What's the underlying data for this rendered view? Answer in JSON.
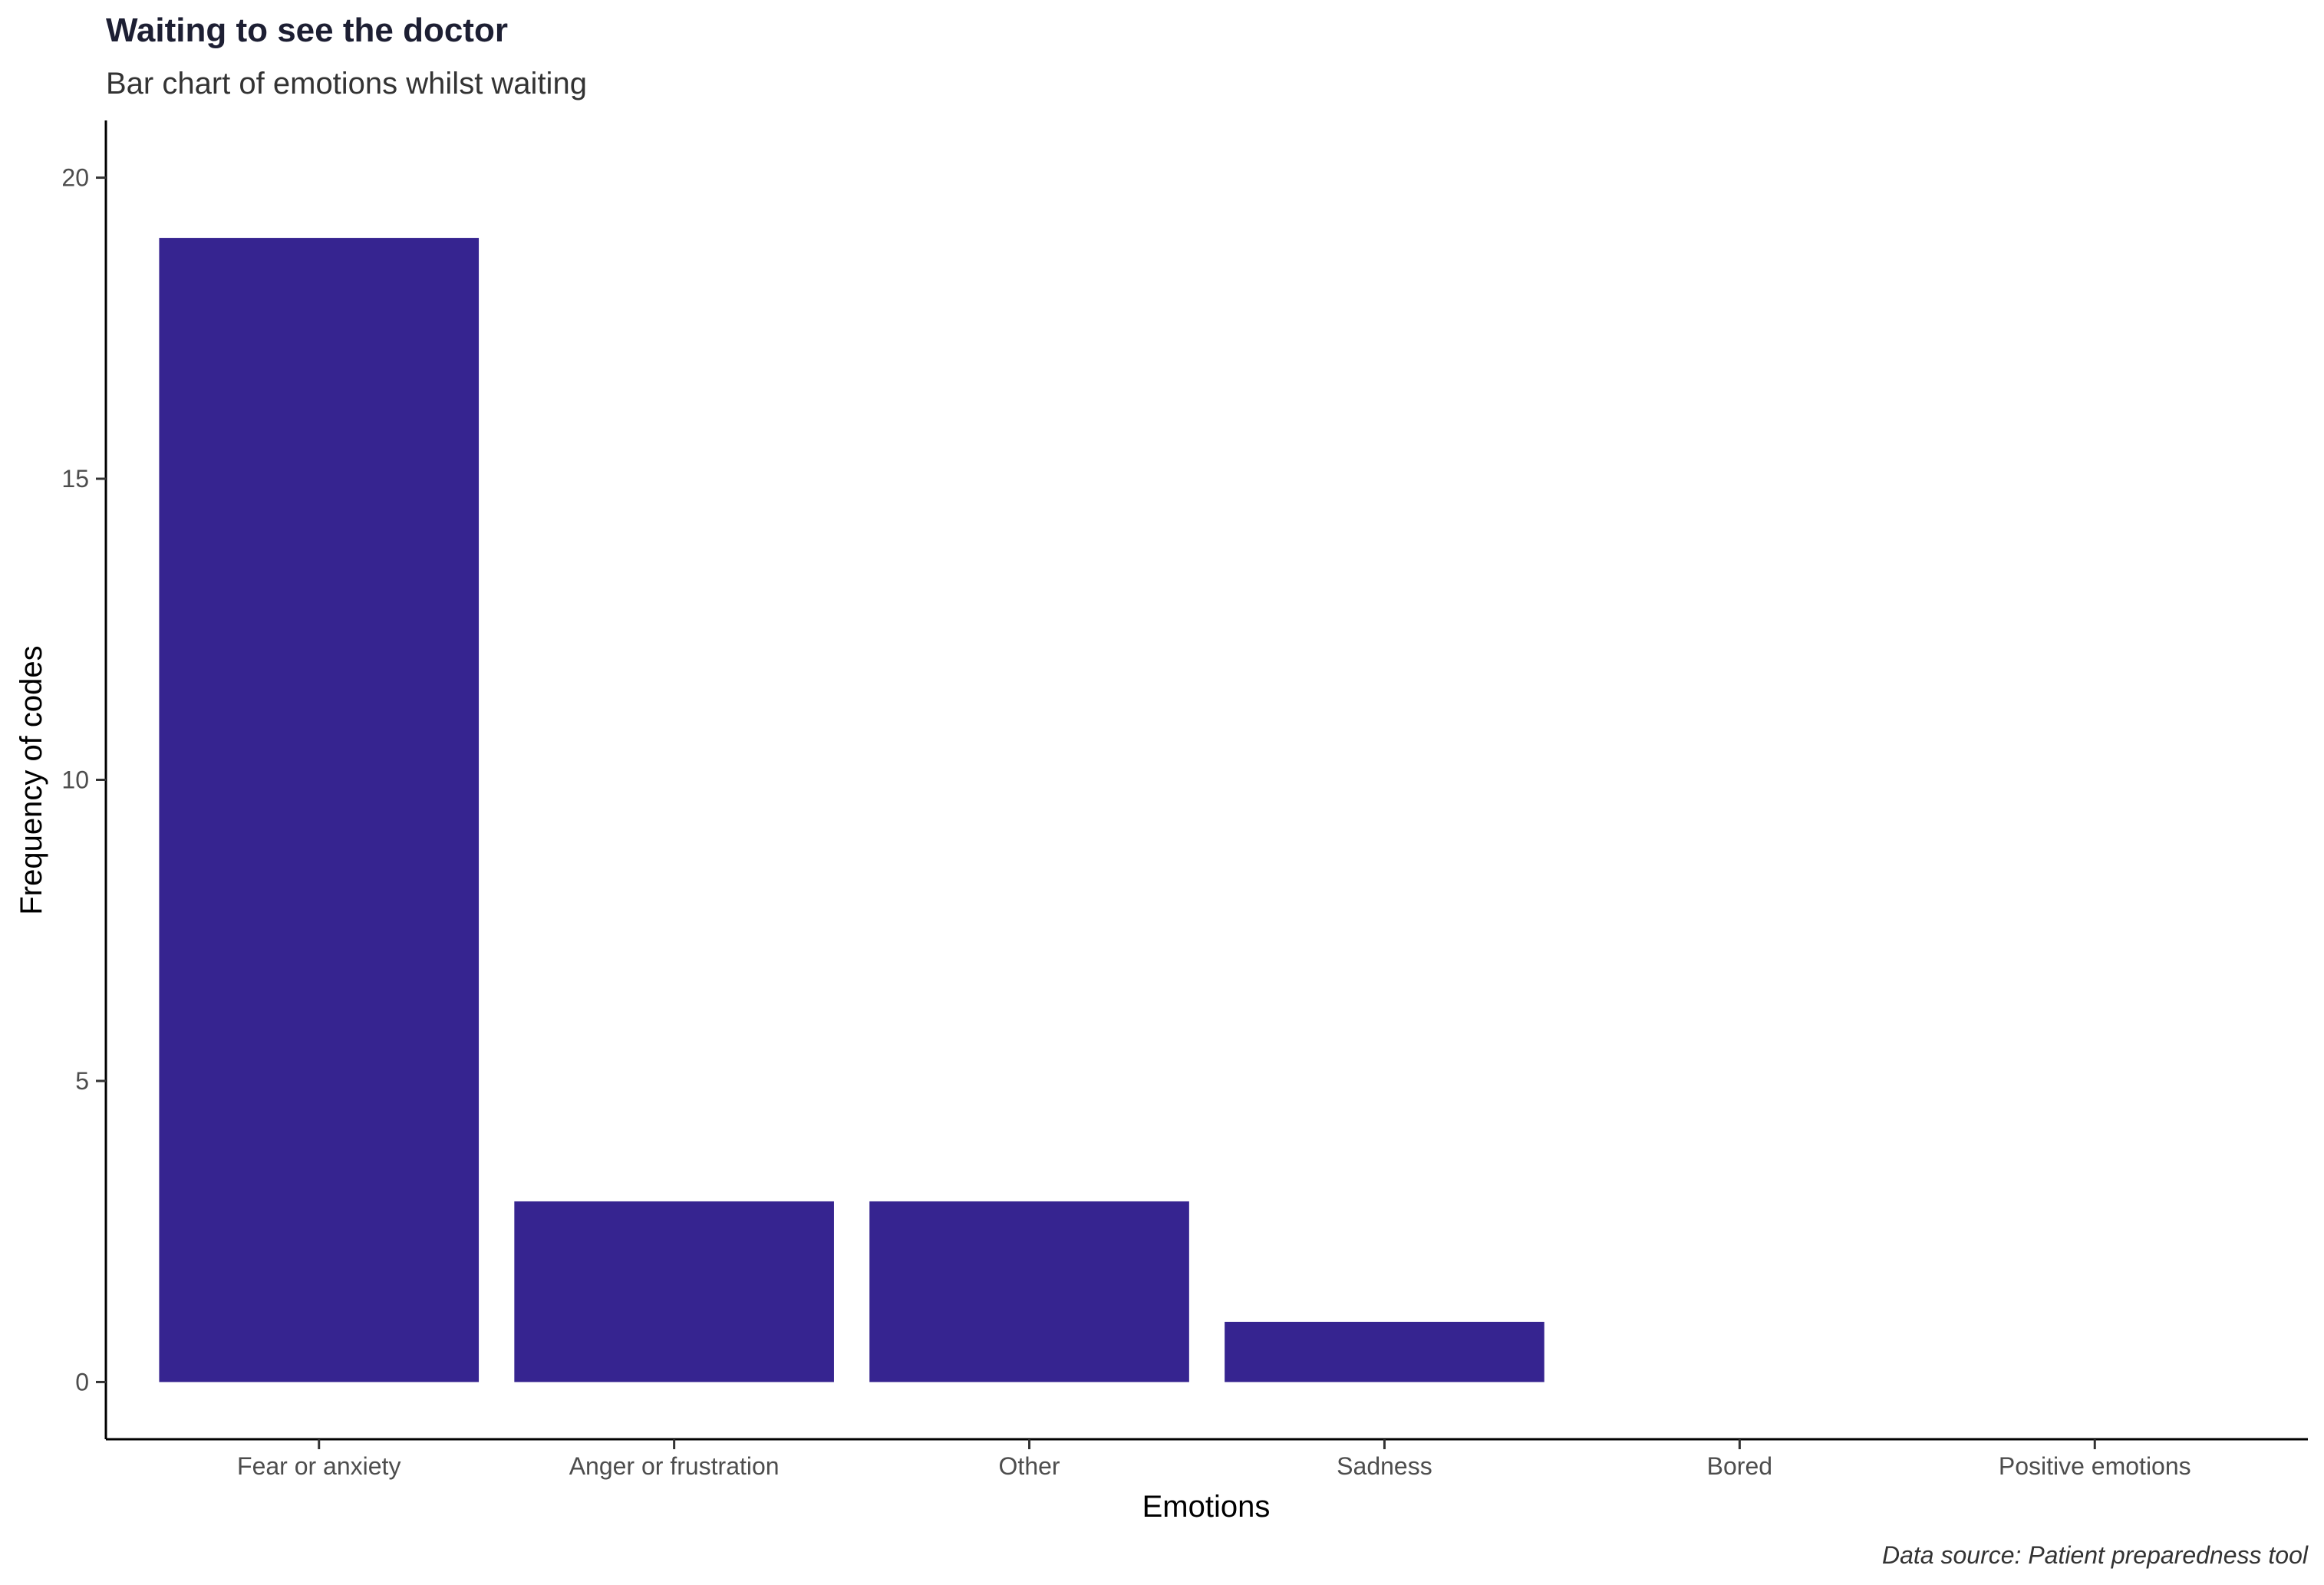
{
  "chart_data": {
    "type": "bar",
    "title": "Waiting to see the doctor",
    "subtitle": "Bar chart of emotions whilst waiting",
    "xlabel": "Emotions",
    "ylabel": "Frequency of codes",
    "caption": "Data source: Patient preparedness tool",
    "categories": [
      "Fear or anxiety",
      "Anger or frustration",
      "Other",
      "Sadness",
      "Bored",
      "Positive emotions"
    ],
    "values": [
      19,
      3,
      3,
      1,
      0,
      0
    ],
    "ylim": [
      -0.95,
      20.95
    ],
    "yticks": [
      0,
      5,
      10,
      15,
      20
    ],
    "bar_color": "#362490",
    "grid": false,
    "legend": "none"
  }
}
